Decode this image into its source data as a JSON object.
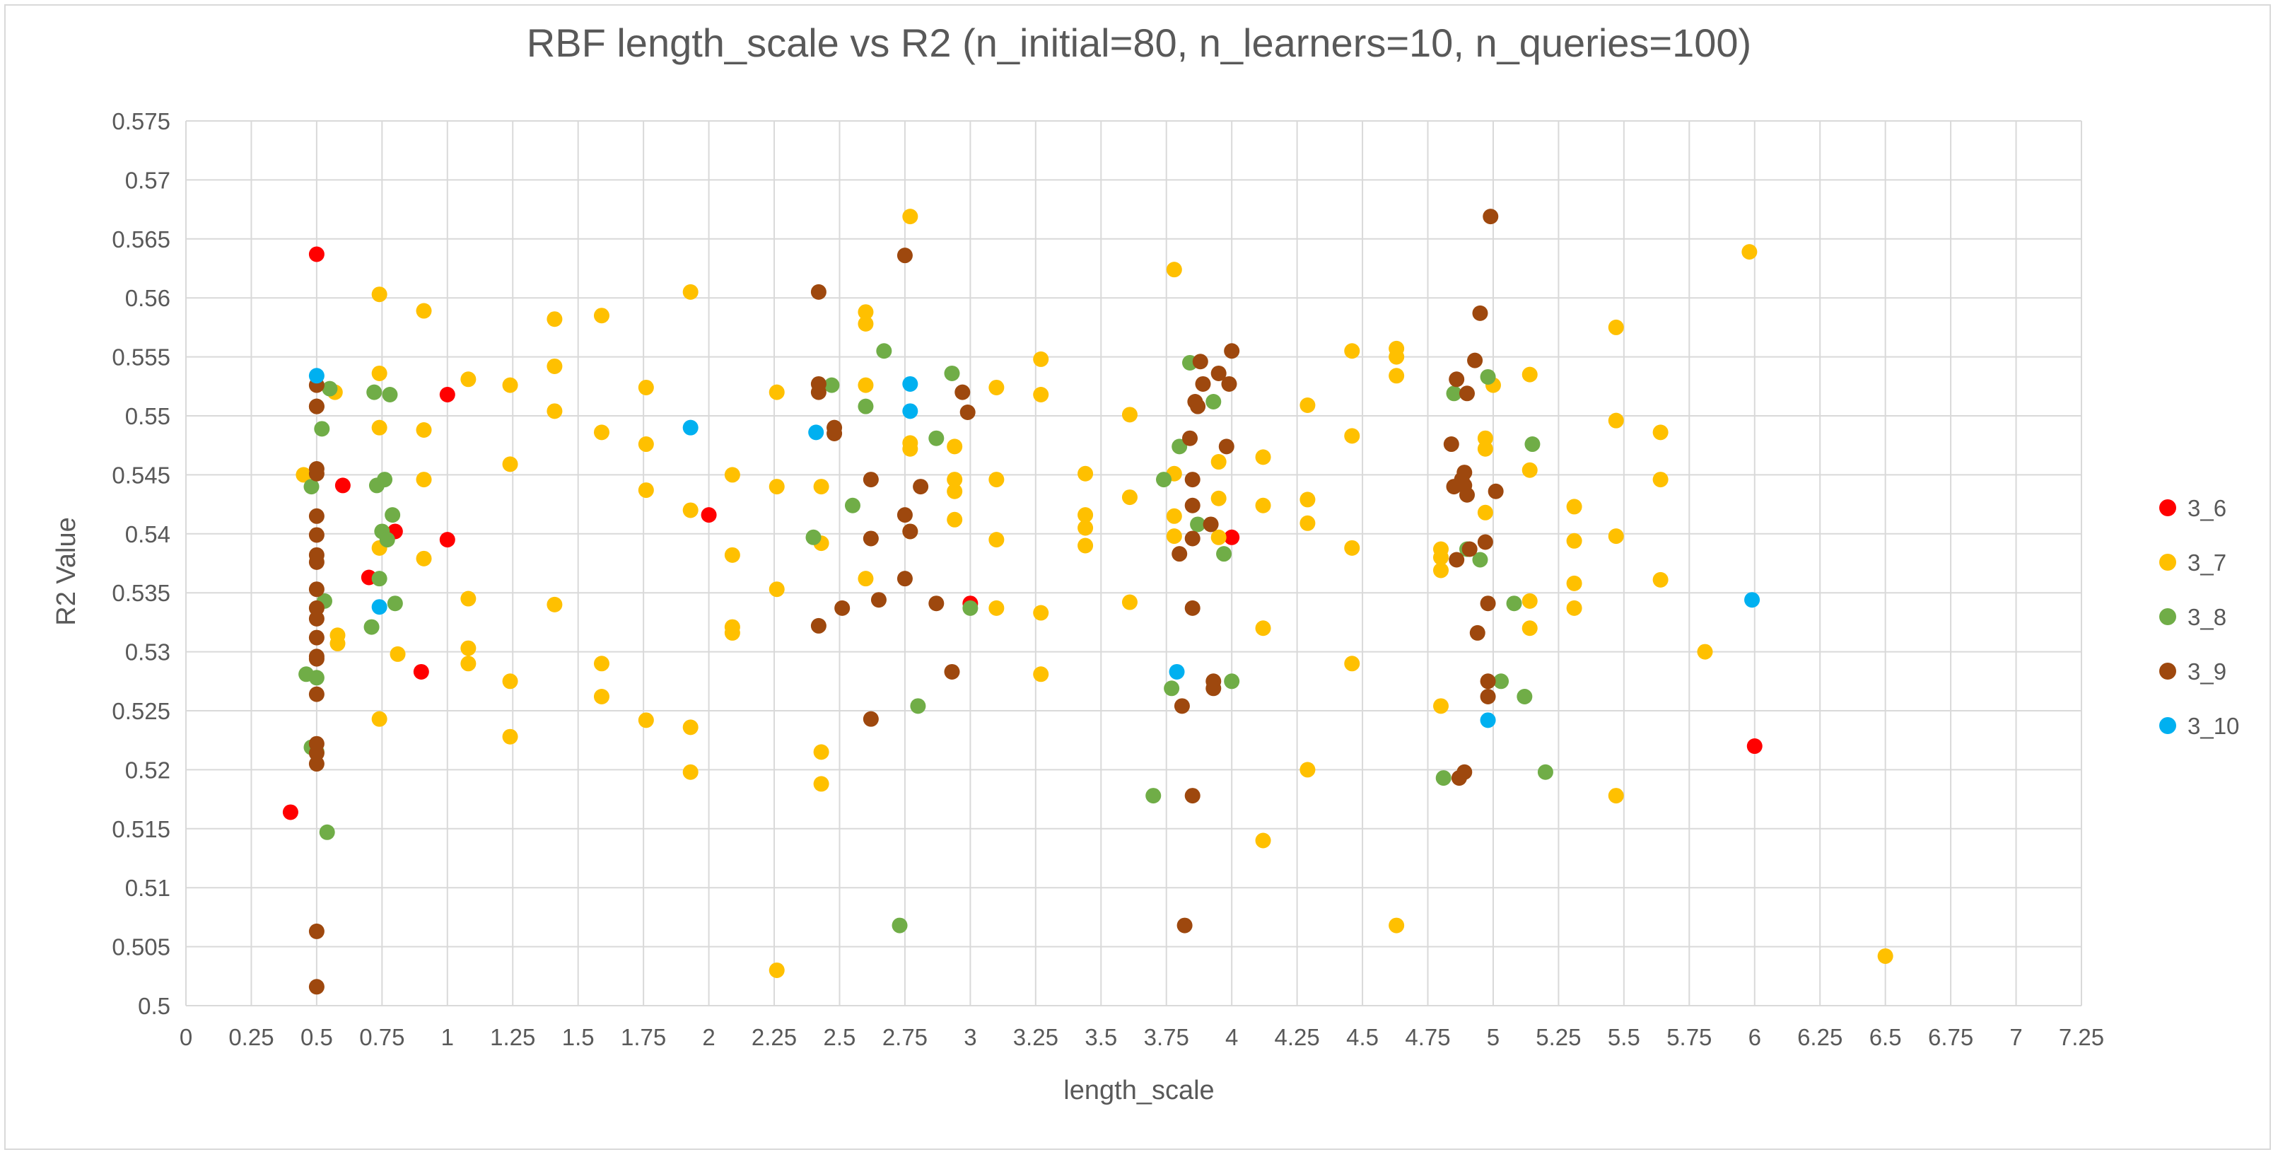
{
  "chart_data": {
    "type": "scatter",
    "title": "RBF length_scale vs R2 (n_initial=80, n_learners=10, n_queries=100)",
    "xlabel": "length_scale",
    "ylabel": "R2 Value",
    "xlim": [
      0,
      7.25
    ],
    "ylim": [
      0.5,
      0.575
    ],
    "x_ticks": [
      "0",
      "0.25",
      "0.5",
      "0.75",
      "1",
      "1.25",
      "1.5",
      "1.75",
      "2",
      "2.25",
      "2.5",
      "2.75",
      "3",
      "3.25",
      "3.5",
      "3.75",
      "4",
      "4.25",
      "4.5",
      "4.75",
      "5",
      "5.25",
      "5.5",
      "5.75",
      "6",
      "6.25",
      "6.5",
      "6.75",
      "7",
      "7.25"
    ],
    "y_ticks": [
      "0.5",
      "0.505",
      "0.51",
      "0.515",
      "0.52",
      "0.525",
      "0.53",
      "0.535",
      "0.54",
      "0.545",
      "0.55",
      "0.555",
      "0.56",
      "0.565",
      "0.57",
      "0.575"
    ],
    "grid": true,
    "legend_position": "right",
    "series": [
      {
        "name": "3_6",
        "color": "#ff0000",
        "points": [
          [
            0.5,
            0.5637
          ],
          [
            0.4,
            0.5164
          ],
          [
            0.6,
            0.5441
          ],
          [
            0.7,
            0.5363
          ],
          [
            0.8,
            0.5402
          ],
          [
            0.9,
            0.5283
          ],
          [
            1.0,
            0.5395
          ],
          [
            1.0,
            0.5518
          ],
          [
            2.0,
            0.5416
          ],
          [
            3.0,
            0.5341
          ],
          [
            4.0,
            0.5397
          ],
          [
            6.0,
            0.522
          ]
        ]
      },
      {
        "name": "3_7",
        "color": "#ffc000",
        "points": [
          [
            0.45,
            0.545
          ],
          [
            0.57,
            0.552
          ],
          [
            0.58,
            0.5314
          ],
          [
            0.58,
            0.5307
          ],
          [
            0.74,
            0.5603
          ],
          [
            0.74,
            0.5536
          ],
          [
            0.74,
            0.549
          ],
          [
            0.74,
            0.5388
          ],
          [
            0.74,
            0.5243
          ],
          [
            0.81,
            0.5298
          ],
          [
            0.91,
            0.5589
          ],
          [
            0.91,
            0.5488
          ],
          [
            0.91,
            0.5446
          ],
          [
            0.91,
            0.5379
          ],
          [
            1.08,
            0.5531
          ],
          [
            1.08,
            0.5345
          ],
          [
            1.08,
            0.5303
          ],
          [
            1.08,
            0.529
          ],
          [
            1.24,
            0.5526
          ],
          [
            1.24,
            0.5459
          ],
          [
            1.24,
            0.5275
          ],
          [
            1.24,
            0.5228
          ],
          [
            1.41,
            0.5582
          ],
          [
            1.41,
            0.5542
          ],
          [
            1.41,
            0.5504
          ],
          [
            1.41,
            0.534
          ],
          [
            1.59,
            0.5585
          ],
          [
            1.59,
            0.5486
          ],
          [
            1.59,
            0.529
          ],
          [
            1.59,
            0.5262
          ],
          [
            1.76,
            0.5524
          ],
          [
            1.76,
            0.5476
          ],
          [
            1.76,
            0.5437
          ],
          [
            1.76,
            0.5242
          ],
          [
            1.93,
            0.5605
          ],
          [
            1.93,
            0.542
          ],
          [
            1.93,
            0.5236
          ],
          [
            1.93,
            0.5198
          ],
          [
            2.09,
            0.545
          ],
          [
            2.09,
            0.5382
          ],
          [
            2.09,
            0.5321
          ],
          [
            2.09,
            0.5316
          ],
          [
            2.26,
            0.552
          ],
          [
            2.26,
            0.544
          ],
          [
            2.26,
            0.5353
          ],
          [
            2.26,
            0.503
          ],
          [
            2.43,
            0.544
          ],
          [
            2.43,
            0.5392
          ],
          [
            2.43,
            0.5215
          ],
          [
            2.43,
            0.5188
          ],
          [
            2.6,
            0.5588
          ],
          [
            2.6,
            0.5578
          ],
          [
            2.6,
            0.5526
          ],
          [
            2.6,
            0.5362
          ],
          [
            2.77,
            0.5669
          ],
          [
            2.77,
            0.5477
          ],
          [
            2.77,
            0.5472
          ],
          [
            2.77,
            0.5402
          ],
          [
            2.94,
            0.5474
          ],
          [
            2.94,
            0.5446
          ],
          [
            2.94,
            0.5436
          ],
          [
            2.94,
            0.5412
          ],
          [
            3.1,
            0.5524
          ],
          [
            3.1,
            0.5446
          ],
          [
            3.1,
            0.5395
          ],
          [
            3.1,
            0.5337
          ],
          [
            3.27,
            0.5548
          ],
          [
            3.27,
            0.5518
          ],
          [
            3.27,
            0.5333
          ],
          [
            3.27,
            0.5281
          ],
          [
            3.44,
            0.5451
          ],
          [
            3.44,
            0.5416
          ],
          [
            3.44,
            0.5405
          ],
          [
            3.44,
            0.539
          ],
          [
            3.61,
            0.5501
          ],
          [
            3.61,
            0.5431
          ],
          [
            3.61,
            0.5342
          ],
          [
            3.78,
            0.5624
          ],
          [
            3.78,
            0.5451
          ],
          [
            3.78,
            0.5415
          ],
          [
            3.78,
            0.5398
          ],
          [
            3.95,
            0.5461
          ],
          [
            3.95,
            0.543
          ],
          [
            3.95,
            0.5397
          ],
          [
            4.12,
            0.5465
          ],
          [
            4.12,
            0.5424
          ],
          [
            4.12,
            0.532
          ],
          [
            4.12,
            0.514
          ],
          [
            4.29,
            0.5509
          ],
          [
            4.29,
            0.5429
          ],
          [
            4.29,
            0.5409
          ],
          [
            4.29,
            0.52
          ],
          [
            4.46,
            0.5555
          ],
          [
            4.46,
            0.5483
          ],
          [
            4.46,
            0.5388
          ],
          [
            4.46,
            0.529
          ],
          [
            4.63,
            0.5557
          ],
          [
            4.63,
            0.555
          ],
          [
            4.63,
            0.5534
          ],
          [
            4.63,
            0.5068
          ],
          [
            4.8,
            0.5387
          ],
          [
            4.8,
            0.538
          ],
          [
            4.8,
            0.5369
          ],
          [
            4.8,
            0.5254
          ],
          [
            4.97,
            0.5481
          ],
          [
            4.97,
            0.5472
          ],
          [
            4.97,
            0.5418
          ],
          [
            5.0,
            0.5526
          ],
          [
            5.14,
            0.5535
          ],
          [
            5.14,
            0.5454
          ],
          [
            5.14,
            0.5343
          ],
          [
            5.14,
            0.532
          ],
          [
            5.31,
            0.5423
          ],
          [
            5.31,
            0.5394
          ],
          [
            5.31,
            0.5358
          ],
          [
            5.31,
            0.5337
          ],
          [
            5.47,
            0.5575
          ],
          [
            5.47,
            0.5496
          ],
          [
            5.47,
            0.5398
          ],
          [
            5.47,
            0.5178
          ],
          [
            5.64,
            0.5486
          ],
          [
            5.64,
            0.5446
          ],
          [
            5.64,
            0.5361
          ],
          [
            5.81,
            0.53
          ],
          [
            5.98,
            0.5639
          ],
          [
            6.5,
            0.5042
          ]
        ]
      },
      {
        "name": "3_8",
        "color": "#70ad47",
        "points": [
          [
            0.46,
            0.5281
          ],
          [
            0.48,
            0.544
          ],
          [
            0.48,
            0.5219
          ],
          [
            0.5,
            0.5278
          ],
          [
            0.5,
            0.5215
          ],
          [
            0.52,
            0.5489
          ],
          [
            0.53,
            0.5343
          ],
          [
            0.54,
            0.5147
          ],
          [
            0.55,
            0.5523
          ],
          [
            0.71,
            0.5321
          ],
          [
            0.72,
            0.552
          ],
          [
            0.73,
            0.5441
          ],
          [
            0.74,
            0.5362
          ],
          [
            0.75,
            0.5402
          ],
          [
            0.76,
            0.5446
          ],
          [
            0.77,
            0.5395
          ],
          [
            0.78,
            0.5518
          ],
          [
            0.79,
            0.5416
          ],
          [
            0.8,
            0.5341
          ],
          [
            2.4,
            0.5397
          ],
          [
            2.47,
            0.5526
          ],
          [
            2.55,
            0.5424
          ],
          [
            2.6,
            0.5508
          ],
          [
            2.67,
            0.5555
          ],
          [
            2.73,
            0.5068
          ],
          [
            2.8,
            0.5254
          ],
          [
            2.87,
            0.5481
          ],
          [
            2.93,
            0.5536
          ],
          [
            3.0,
            0.5337
          ],
          [
            3.7,
            0.5178
          ],
          [
            3.74,
            0.5446
          ],
          [
            3.77,
            0.5269
          ],
          [
            3.8,
            0.5474
          ],
          [
            3.84,
            0.5545
          ],
          [
            3.87,
            0.5408
          ],
          [
            3.93,
            0.5512
          ],
          [
            3.97,
            0.5383
          ],
          [
            4.0,
            0.5275
          ],
          [
            4.81,
            0.5193
          ],
          [
            4.85,
            0.5519
          ],
          [
            4.9,
            0.5387
          ],
          [
            4.95,
            0.5378
          ],
          [
            4.98,
            0.5533
          ],
          [
            5.03,
            0.5275
          ],
          [
            5.08,
            0.5341
          ],
          [
            5.12,
            0.5262
          ],
          [
            5.15,
            0.5476
          ],
          [
            5.2,
            0.5198
          ]
        ]
      },
      {
        "name": "3_9",
        "color": "#9e480e",
        "points": [
          [
            0.5,
            0.5508
          ],
          [
            0.5,
            0.5526
          ],
          [
            0.5,
            0.5508
          ],
          [
            0.5,
            0.5455
          ],
          [
            0.5,
            0.5451
          ],
          [
            0.5,
            0.5415
          ],
          [
            0.5,
            0.5399
          ],
          [
            0.5,
            0.5382
          ],
          [
            0.5,
            0.5376
          ],
          [
            0.5,
            0.5353
          ],
          [
            0.5,
            0.5337
          ],
          [
            0.5,
            0.5328
          ],
          [
            0.5,
            0.5312
          ],
          [
            0.5,
            0.5296
          ],
          [
            0.5,
            0.5294
          ],
          [
            0.5,
            0.5264
          ],
          [
            0.5,
            0.5222
          ],
          [
            0.5,
            0.5214
          ],
          [
            0.5,
            0.5205
          ],
          [
            0.5,
            0.5063
          ],
          [
            0.5,
            0.5016
          ],
          [
            2.42,
            0.5605
          ],
          [
            2.42,
            0.5527
          ],
          [
            2.42,
            0.552
          ],
          [
            2.42,
            0.5322
          ],
          [
            2.48,
            0.549
          ],
          [
            2.48,
            0.5485
          ],
          [
            2.51,
            0.5337
          ],
          [
            2.62,
            0.5446
          ],
          [
            2.62,
            0.5396
          ],
          [
            2.62,
            0.5243
          ],
          [
            2.65,
            0.5344
          ],
          [
            2.75,
            0.5636
          ],
          [
            2.75,
            0.5416
          ],
          [
            2.75,
            0.5362
          ],
          [
            2.77,
            0.5402
          ],
          [
            2.81,
            0.544
          ],
          [
            2.87,
            0.5341
          ],
          [
            2.93,
            0.5283
          ],
          [
            2.97,
            0.552
          ],
          [
            2.99,
            0.5503
          ],
          [
            3.8,
            0.5383
          ],
          [
            3.81,
            0.5254
          ],
          [
            3.82,
            0.5068
          ],
          [
            3.84,
            0.5481
          ],
          [
            3.85,
            0.5178
          ],
          [
            3.85,
            0.5396
          ],
          [
            3.85,
            0.5424
          ],
          [
            3.85,
            0.5446
          ],
          [
            3.85,
            0.5337
          ],
          [
            3.86,
            0.5512
          ],
          [
            3.87,
            0.5508
          ],
          [
            3.88,
            0.5546
          ],
          [
            3.89,
            0.5527
          ],
          [
            3.92,
            0.5408
          ],
          [
            3.93,
            0.5275
          ],
          [
            3.93,
            0.5269
          ],
          [
            3.95,
            0.5536
          ],
          [
            3.98,
            0.5474
          ],
          [
            3.99,
            0.5527
          ],
          [
            4.0,
            0.5555
          ],
          [
            4.84,
            0.5476
          ],
          [
            4.85,
            0.544
          ],
          [
            4.86,
            0.5378
          ],
          [
            4.86,
            0.5531
          ],
          [
            4.87,
            0.5193
          ],
          [
            4.88,
            0.5446
          ],
          [
            4.89,
            0.5198
          ],
          [
            4.89,
            0.5441
          ],
          [
            4.89,
            0.5452
          ],
          [
            4.9,
            0.5519
          ],
          [
            4.9,
            0.5433
          ],
          [
            4.91,
            0.5387
          ],
          [
            4.93,
            0.5547
          ],
          [
            4.94,
            0.5316
          ],
          [
            4.95,
            0.5587
          ],
          [
            4.97,
            0.5393
          ],
          [
            4.98,
            0.5262
          ],
          [
            4.98,
            0.5275
          ],
          [
            4.98,
            0.5341
          ],
          [
            4.99,
            0.5669
          ],
          [
            5.01,
            0.5436
          ]
        ]
      },
      {
        "name": "3_10",
        "color": "#00b0f0",
        "points": [
          [
            0.5,
            0.5534
          ],
          [
            0.74,
            0.5338
          ],
          [
            1.93,
            0.549
          ],
          [
            2.41,
            0.5486
          ],
          [
            2.77,
            0.5504
          ],
          [
            2.77,
            0.5527
          ],
          [
            3.79,
            0.5283
          ],
          [
            4.98,
            0.5242
          ],
          [
            5.99,
            0.5344
          ]
        ]
      }
    ]
  }
}
